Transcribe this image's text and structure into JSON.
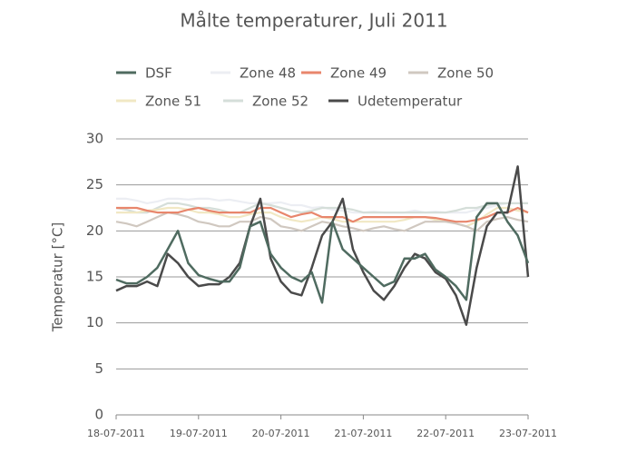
{
  "chart_data": {
    "type": "line",
    "title": "Målte temperaturer, Juli 2011",
    "y_label": "Temperatur [°C]",
    "x": [
      "18-07-2011 00:00",
      "18-07-2011 03:00",
      "18-07-2011 06:00",
      "18-07-2011 09:00",
      "18-07-2011 12:00",
      "18-07-2011 15:00",
      "18-07-2011 18:00",
      "18-07-2011 21:00",
      "19-07-2011 00:00",
      "19-07-2011 03:00",
      "19-07-2011 06:00",
      "19-07-2011 09:00",
      "19-07-2011 12:00",
      "19-07-2011 15:00",
      "19-07-2011 18:00",
      "19-07-2011 21:00",
      "20-07-2011 00:00",
      "20-07-2011 03:00",
      "20-07-2011 06:00",
      "20-07-2011 09:00",
      "20-07-2011 12:00",
      "20-07-2011 15:00",
      "20-07-2011 18:00",
      "20-07-2011 21:00",
      "21-07-2011 00:00",
      "21-07-2011 03:00",
      "21-07-2011 06:00",
      "21-07-2011 09:00",
      "21-07-2011 12:00",
      "21-07-2011 15:00",
      "21-07-2011 18:00",
      "21-07-2011 21:00",
      "22-07-2011 00:00",
      "22-07-2011 03:00",
      "22-07-2011 06:00",
      "22-07-2011 09:00",
      "22-07-2011 12:00",
      "22-07-2011 15:00",
      "22-07-2011 18:00",
      "22-07-2011 21:00",
      "23-07-2011 00:00"
    ],
    "series": [
      {
        "name": "DSF",
        "color": "#4f6b60",
        "values": [
          14.7,
          14.3,
          14.3,
          15,
          16,
          18,
          20,
          16.5,
          15.2,
          14.8,
          14.5,
          14.5,
          16,
          20.5,
          21,
          17.5,
          16,
          15,
          14.5,
          15.5,
          12.2,
          21,
          18,
          17,
          16,
          15,
          14,
          14.5,
          17,
          17,
          17.5,
          15.8,
          15,
          14,
          12.5,
          21.5,
          23,
          23,
          21,
          19.5,
          16.5
        ]
      },
      {
        "name": "Zone 48",
        "color": "#eceef3",
        "values": [
          23.5,
          23.5,
          23.3,
          23,
          23.2,
          23.5,
          23.5,
          23.4,
          23.5,
          23.5,
          23.3,
          23.4,
          23.2,
          23,
          23,
          23,
          23.1,
          22.8,
          22.8,
          22.5,
          22.6,
          22.3,
          22.2,
          22,
          22,
          22.1,
          22,
          22,
          22,
          22.2,
          22,
          22.1,
          22,
          22,
          22,
          22.3,
          22.5,
          22.8,
          23,
          23,
          23
        ]
      },
      {
        "name": "Zone 49",
        "color": "#e8866c",
        "values": [
          22.5,
          22.5,
          22.5,
          22.2,
          22,
          22,
          22,
          22.3,
          22.5,
          22.2,
          22,
          22,
          22,
          22,
          22.5,
          22.5,
          22,
          21.5,
          21.8,
          22,
          21.5,
          21.5,
          21.5,
          21,
          21.5,
          21.5,
          21.5,
          21.5,
          21.5,
          21.5,
          21.5,
          21.4,
          21.2,
          21,
          21,
          21.2,
          21.5,
          22,
          22,
          22.5,
          22
        ]
      },
      {
        "name": "Zone 50",
        "color": "#d0c8c0",
        "values": [
          21,
          20.8,
          20.5,
          21,
          21.5,
          22,
          21.8,
          21.5,
          21,
          20.8,
          20.5,
          20.5,
          21,
          21,
          21.5,
          21.3,
          20.5,
          20.3,
          20,
          20.5,
          21,
          20.8,
          20.5,
          20.3,
          20,
          20.3,
          20.5,
          20.2,
          20,
          20.5,
          21,
          21,
          21,
          20.8,
          20.5,
          20,
          21,
          21.3,
          21.5,
          21.2,
          21
        ]
      },
      {
        "name": "Zone 51",
        "color": "#f1e8c4",
        "values": [
          22,
          22,
          22,
          22.2,
          22.3,
          22.5,
          22.5,
          22.3,
          22,
          22,
          21.8,
          21.5,
          21.5,
          21.8,
          22,
          22,
          21.5,
          21.2,
          21,
          21.2,
          21.5,
          21.3,
          21,
          21,
          21,
          21,
          21,
          21,
          21.2,
          21.5,
          21.5,
          21.2,
          21,
          20.8,
          20.5,
          21,
          21.8,
          22.5,
          22.5,
          22.2,
          22
        ]
      },
      {
        "name": "Zone 52",
        "color": "#d5ded9",
        "values": [
          22.5,
          22.3,
          22,
          22,
          22.5,
          23,
          23,
          22.8,
          22.5,
          22.5,
          22.3,
          22,
          22,
          22.5,
          23,
          22.8,
          22.5,
          22.2,
          22,
          22.2,
          22.5,
          22.5,
          22.5,
          22.3,
          22,
          22,
          22,
          22,
          22,
          22,
          22,
          22,
          22,
          22.2,
          22.5,
          22.5,
          22.8,
          23,
          23,
          23,
          23
        ]
      },
      {
        "name": "Udetemperatur",
        "color": "#4a4a4a",
        "values": [
          13.5,
          14,
          14,
          14.5,
          14,
          17.5,
          16.5,
          15,
          14,
          14.2,
          14.2,
          15,
          16.5,
          20.5,
          23.5,
          17,
          14.5,
          13.3,
          13,
          16,
          19.5,
          21,
          23.5,
          18,
          15.5,
          13.5,
          12.5,
          14,
          16,
          17.5,
          17,
          15.5,
          14.8,
          13,
          9.8,
          16,
          20.5,
          22,
          22,
          27,
          15
        ]
      }
    ],
    "xlim": [
      "18-07-2011",
      "23-07-2011"
    ],
    "xticks": [
      "18-07-2011",
      "19-07-2011",
      "20-07-2011",
      "21-07-2011",
      "22-07-2011",
      "23-07-2011"
    ],
    "ylim": [
      0,
      30
    ],
    "yticks": [
      0,
      5,
      10,
      15,
      20,
      25,
      30
    ],
    "grid": true
  }
}
